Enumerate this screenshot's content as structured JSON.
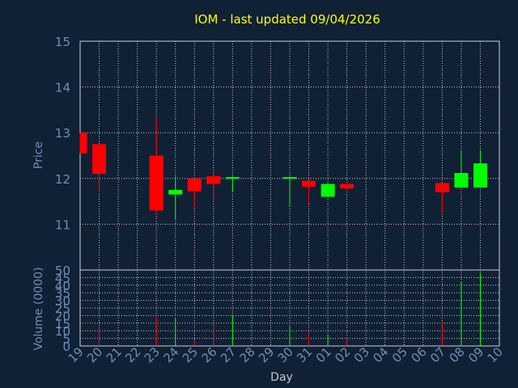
{
  "chart_data": {
    "type": "candlestick",
    "title": "IOM - last updated 09/04/2026",
    "price_axis": {
      "label": "Price",
      "ylim": [
        10,
        15
      ],
      "ticks": [
        "11",
        "12",
        "13",
        "14",
        "15"
      ]
    },
    "volume_axis": {
      "label": "Volume (0000)",
      "ylim": [
        0,
        50
      ],
      "ticks": [
        "0",
        "5",
        "10",
        "15",
        "20",
        "25",
        "30",
        "35",
        "40",
        "45",
        "50"
      ]
    },
    "xlabel": "Day",
    "x_ticks": [
      "19",
      "20",
      "21",
      "22",
      "23",
      "24",
      "25",
      "26",
      "27",
      "28",
      "29",
      "30",
      "31",
      "01",
      "02",
      "03",
      "04",
      "05",
      "06",
      "07",
      "08",
      "09",
      "10"
    ],
    "grid": true,
    "candles": [
      {
        "day": "19",
        "open": 13.0,
        "high": 13.0,
        "low": 12.55,
        "close": 12.55,
        "volume": 0,
        "color": "red"
      },
      {
        "day": "20",
        "open": 12.75,
        "high": 12.75,
        "low": 11.7,
        "close": 12.1,
        "volume": 12,
        "color": "red"
      },
      {
        "day": "23",
        "open": 12.5,
        "high": 13.35,
        "low": 11.25,
        "close": 11.3,
        "volume": 20,
        "color": "red"
      },
      {
        "day": "24",
        "open": 11.65,
        "high": 12.05,
        "low": 11.1,
        "close": 11.75,
        "volume": 18,
        "color": "green"
      },
      {
        "day": "25",
        "open": 12.0,
        "high": 12.0,
        "low": 11.35,
        "close": 11.72,
        "volume": 3,
        "color": "red"
      },
      {
        "day": "26",
        "open": 12.05,
        "high": 12.05,
        "low": 11.5,
        "close": 11.88,
        "volume": 13,
        "color": "red"
      },
      {
        "day": "27",
        "open": 12.0,
        "high": 12.05,
        "low": 11.7,
        "close": 12.03,
        "volume": 20,
        "color": "green"
      },
      {
        "day": "30",
        "open": 12.0,
        "high": 12.05,
        "low": 11.4,
        "close": 12.03,
        "volume": 13,
        "color": "green"
      },
      {
        "day": "31",
        "open": 11.95,
        "high": 11.95,
        "low": 11.45,
        "close": 11.82,
        "volume": 8,
        "color": "red"
      },
      {
        "day": "01",
        "open": 11.6,
        "high": 11.9,
        "low": 11.6,
        "close": 11.88,
        "volume": 7,
        "color": "green"
      },
      {
        "day": "02",
        "open": 11.88,
        "high": 11.88,
        "low": 11.75,
        "close": 11.78,
        "volume": 5,
        "color": "red"
      },
      {
        "day": "07",
        "open": 11.9,
        "high": 11.9,
        "low": 11.25,
        "close": 11.7,
        "volume": 15,
        "color": "red"
      },
      {
        "day": "08",
        "open": 11.8,
        "high": 12.62,
        "low": 11.8,
        "close": 12.12,
        "volume": 42,
        "color": "green"
      },
      {
        "day": "09",
        "open": 11.8,
        "high": 12.62,
        "low": 11.8,
        "close": 12.33,
        "volume": 48,
        "color": "green"
      }
    ],
    "colors": {
      "background": "#102035",
      "up": "#00ff00",
      "down": "#ff0000",
      "grid": "#c8c8c8",
      "axis_text": "#6e8fb5",
      "title": "#ffff00"
    }
  }
}
